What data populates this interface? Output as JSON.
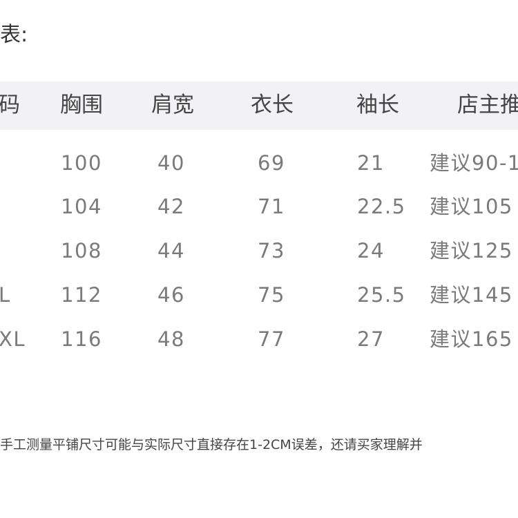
{
  "title": "表:",
  "table": {
    "header": [
      "码",
      "胸围",
      "肩宽",
      "衣长",
      "袖长",
      "店主推"
    ],
    "rows": [
      [
        null,
        100,
        40,
        69,
        21,
        "建议90-1"
      ],
      [
        null,
        104,
        42,
        71,
        22.5,
        "建议105"
      ],
      [
        null,
        108,
        44,
        73,
        24,
        "建议125"
      ],
      [
        "L",
        112,
        46,
        75,
        25.5,
        "建议145"
      ],
      [
        "XL",
        116,
        48,
        77,
        27,
        "建议165"
      ]
    ]
  },
  "note": "手工测量平铺尺寸可能与实际尺寸直接存在1-2CM误差，还请买家理解并"
}
